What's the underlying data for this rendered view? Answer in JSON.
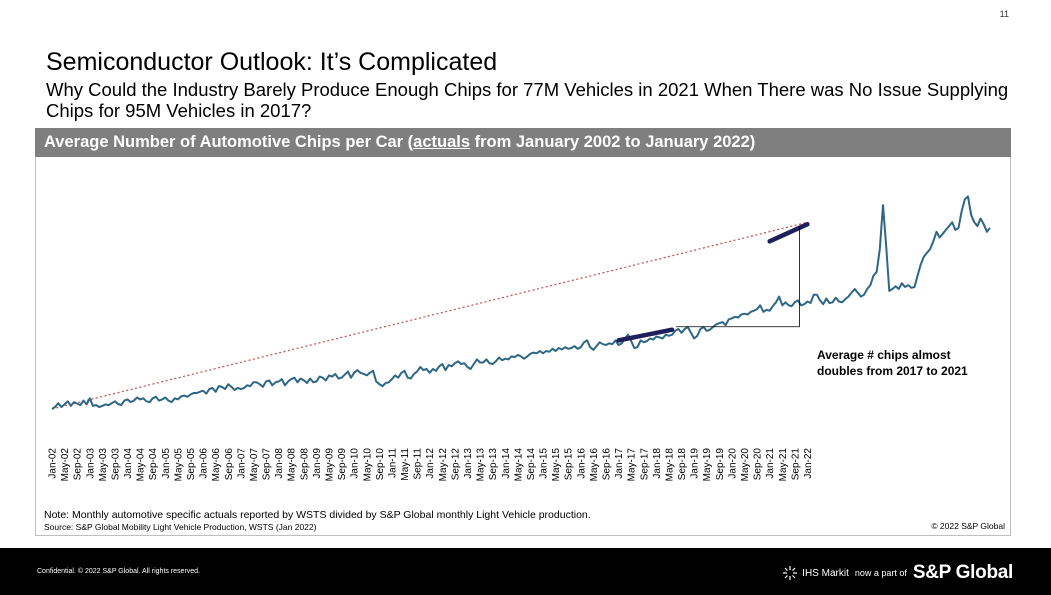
{
  "page_number": "11",
  "title": "Semiconductor Outlook: It’s Complicated",
  "subtitle": "Why Could the Industry Barely Produce Enough Chips for 77M Vehicles in 2021 When There was No Issue Supplying Chips for 95M Vehicles in 2017?",
  "chart_header": {
    "prefix": "Average Number of Automotive Chips per Car (",
    "underlined": "actuals",
    "suffix": " from January 2002 to January 2022)"
  },
  "note": "Note: Monthly automotive specific actuals reported by WSTS divided by S&P Global monthly Light Vehicle production.",
  "source": "Source: S&P Global Mobility Light Vehicle Production, WSTS (Jan 2022)",
  "copyright": "© 2022 S&P Global",
  "footer": {
    "confidential": "Confidential. © 2022 S&P Global. All rights reserved.",
    "ihs": "IHS Markit",
    "now_part": "now a part of",
    "sp": "S&P Global",
    "ihs_icon": "ihs-burst-icon"
  },
  "chart_data": {
    "type": "line",
    "title": "Average Number of Automotive Chips per Car (actuals from January 2002 to January 2022)",
    "xlabel": "",
    "ylabel": "",
    "y_axis_shown": false,
    "grid": false,
    "legend": "none",
    "line_color": "#2e6785",
    "trend_color": "#c0504d",
    "highlight_color": "#1f1f5c",
    "tick_labels": [
      "Jan-02",
      "May-02",
      "Sep-02",
      "Jan-03",
      "May-03",
      "Sep-03",
      "Jan-04",
      "May-04",
      "Sep-04",
      "Jan-05",
      "May-05",
      "Sep-05",
      "Jan-06",
      "May-06",
      "Sep-06",
      "Jan-07",
      "May-07",
      "Sep-07",
      "Jan-08",
      "May-08",
      "Sep-08",
      "Jan-09",
      "May-09",
      "Sep-09",
      "Jan-10",
      "May-10",
      "Sep-10",
      "Jan-11",
      "May-11",
      "Sep-11",
      "Jan-12",
      "May-12",
      "Sep-12",
      "Jan-13",
      "May-13",
      "Sep-13",
      "Jan-14",
      "May-14",
      "Sep-14",
      "Jan-15",
      "May-15",
      "Sep-15",
      "Jan-16",
      "May-16",
      "Sep-16",
      "Jan-17",
      "May-17",
      "Sep-17",
      "Jan-18",
      "May-18",
      "Sep-18",
      "Jan-19",
      "May-19",
      "Sep-19",
      "Jan-20",
      "May-20",
      "Sep-20",
      "Jan-21",
      "May-21",
      "Sep-21",
      "Jan-22"
    ],
    "series": [
      {
        "name": "",
        "values": [
          1.0,
          1.05,
          1.15,
          1.05,
          1.12,
          1.2,
          1.08,
          1.18,
          1.14,
          1.1,
          1.22,
          1.12,
          1.28,
          1.08,
          1.1,
          1.05,
          1.08,
          1.12,
          1.1,
          1.15,
          1.2,
          1.13,
          1.1,
          1.22,
          1.25,
          1.18,
          1.22,
          1.3,
          1.25,
          1.28,
          1.2,
          1.18,
          1.28,
          1.32,
          1.22,
          1.25,
          1.3,
          1.22,
          1.18,
          1.28,
          1.25,
          1.33,
          1.35,
          1.32,
          1.38,
          1.42,
          1.42,
          1.45,
          1.48,
          1.4,
          1.52,
          1.55,
          1.45,
          1.6,
          1.58,
          1.52,
          1.65,
          1.58,
          1.5,
          1.55,
          1.52,
          1.55,
          1.62,
          1.6,
          1.7,
          1.7,
          1.65,
          1.58,
          1.72,
          1.75,
          1.62,
          1.7,
          1.72,
          1.78,
          1.62,
          1.72,
          1.78,
          1.82,
          1.7,
          1.8,
          1.75,
          1.68,
          1.8,
          1.7,
          1.72,
          1.85,
          1.82,
          1.75,
          1.88,
          1.85,
          1.92,
          1.8,
          1.82,
          1.9,
          1.98,
          1.82,
          1.95,
          2.02,
          1.95,
          1.92,
          1.88,
          1.95,
          2.0,
          1.72,
          1.65,
          1.6,
          1.68,
          1.7,
          1.78,
          1.88,
          1.82,
          1.95,
          2.0,
          1.82,
          1.8,
          1.92,
          1.98,
          2.1,
          2.02,
          2.05,
          1.95,
          2.05,
          2.0,
          2.12,
          2.18,
          2.02,
          2.15,
          2.12,
          2.2,
          2.25,
          2.18,
          2.2,
          2.1,
          2.05,
          2.18,
          2.3,
          2.22,
          2.22,
          2.3,
          2.2,
          2.18,
          2.25,
          2.35,
          2.28,
          2.32,
          2.3,
          2.38,
          2.36,
          2.42,
          2.38,
          2.32,
          2.38,
          2.45,
          2.48,
          2.46,
          2.52,
          2.46,
          2.52,
          2.5,
          2.58,
          2.52,
          2.6,
          2.56,
          2.62,
          2.58,
          2.6,
          2.65,
          2.58,
          2.62,
          2.75,
          2.8,
          2.62,
          2.55,
          2.65,
          2.75,
          2.7,
          2.68,
          2.72,
          2.7,
          2.8,
          2.68,
          2.72,
          2.85,
          2.95,
          2.78,
          2.6,
          2.62,
          2.8,
          2.75,
          2.78,
          2.85,
          2.82,
          2.9,
          2.88,
          2.85,
          2.95,
          2.92,
          2.95,
          3.05,
          3.1,
          3.0,
          3.1,
          3.15,
          3.0,
          2.85,
          2.92,
          3.1,
          3.15,
          3.05,
          3.08,
          3.15,
          3.22,
          3.25,
          3.28,
          3.2,
          3.35,
          3.38,
          3.42,
          3.4,
          3.48,
          3.5,
          3.48,
          3.55,
          3.58,
          3.62,
          3.72,
          3.55,
          3.6,
          3.58,
          3.7,
          3.8,
          3.95,
          3.72,
          3.8,
          3.72,
          3.7,
          3.8,
          3.85,
          3.72,
          3.75,
          3.82,
          3.78,
          4.0,
          4.0,
          3.85,
          3.75,
          3.9,
          3.78,
          3.8,
          3.92,
          3.82,
          3.8,
          3.88,
          3.95,
          4.05,
          4.15,
          4.05,
          3.95,
          4.0,
          4.15,
          4.25,
          4.5,
          4.6,
          5.2,
          6.35,
          5.3,
          4.1,
          4.15,
          4.22,
          4.15,
          4.3,
          4.2,
          4.25,
          4.18,
          4.2,
          4.5,
          4.8,
          5.0,
          5.1,
          5.2,
          5.4,
          5.65,
          5.5,
          5.6,
          5.7,
          5.8,
          5.9,
          5.7,
          5.75,
          6.2,
          6.5,
          6.58,
          6.1,
          5.9,
          5.8,
          6.0,
          5.85,
          5.65,
          5.75
        ]
      }
    ],
    "trend_line": [
      {
        "x": 0,
        "y": 1.0
      },
      {
        "x": 240,
        "y": 5.9
      }
    ],
    "highlight_segments": [
      {
        "from": {
          "x": 180,
          "y": 2.8
        },
        "to": {
          "x": 197,
          "y": 3.08
        }
      },
      {
        "from": {
          "x": 228,
          "y": 5.4
        },
        "to": {
          "x": 240,
          "y": 5.85
        }
      }
    ],
    "annotation": {
      "text_line1": "Average # chips almost",
      "text_line2": "doubles from 2017 to 2021"
    },
    "ylim": [
      0.5,
      6.8
    ]
  }
}
